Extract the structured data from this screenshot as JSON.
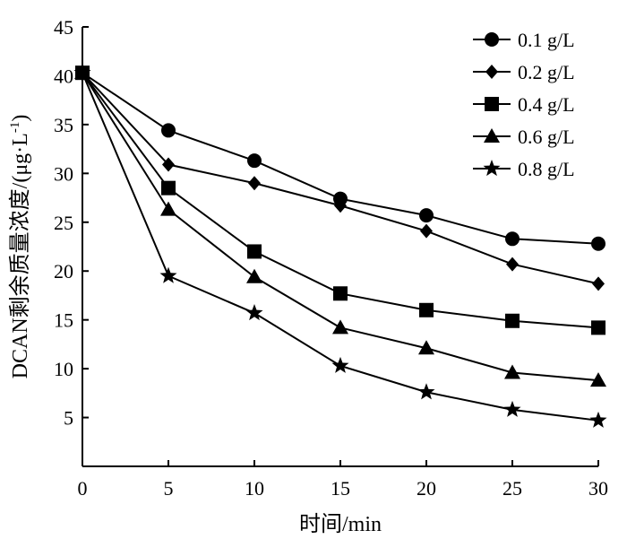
{
  "chart_data": {
    "type": "line",
    "xlabel": "时间/min",
    "ylabel": "DCAN剩余质量浓度/(μg·L",
    "ylabel_sup": "-1",
    "ylabel_close": ")",
    "xlim": [
      0,
      30
    ],
    "ylim": [
      0,
      45
    ],
    "x_ticks": [
      0,
      5,
      10,
      15,
      20,
      25,
      30
    ],
    "y_ticks": [
      5,
      10,
      15,
      20,
      25,
      30,
      35,
      40,
      45
    ],
    "grid": false,
    "legend_position": "top-right",
    "x": [
      0,
      5,
      10,
      15,
      20,
      25,
      30
    ],
    "series": [
      {
        "name": "0.1 g/L",
        "marker": "circle",
        "values": [
          40.3,
          34.4,
          31.3,
          27.4,
          25.7,
          23.3,
          22.8
        ]
      },
      {
        "name": "0.2 g/L",
        "marker": "diamond",
        "values": [
          40.3,
          30.9,
          29.0,
          26.7,
          24.1,
          20.7,
          18.7
        ]
      },
      {
        "name": "0.4 g/L",
        "marker": "square",
        "values": [
          40.3,
          28.5,
          22.0,
          17.7,
          16.0,
          14.9,
          14.2
        ]
      },
      {
        "name": "0.6 g/L",
        "marker": "triangle",
        "values": [
          40.3,
          26.3,
          19.4,
          14.2,
          12.1,
          9.6,
          8.8
        ]
      },
      {
        "name": "0.8 g/L",
        "marker": "star",
        "values": [
          40.3,
          19.5,
          15.7,
          10.3,
          7.6,
          5.8,
          4.7
        ]
      }
    ]
  }
}
